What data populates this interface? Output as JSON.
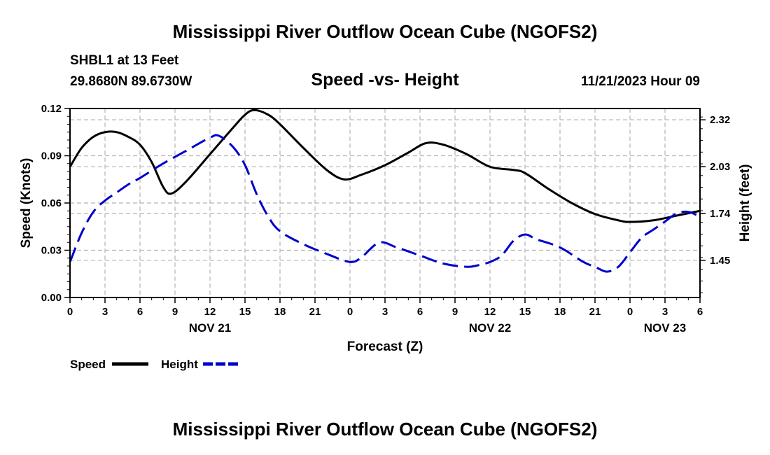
{
  "header": {
    "title": "Mississippi River Outflow Ocean Cube (NGOFS2)",
    "station": "SHBL1 at 13 Feet",
    "coords": "29.8680N  89.6730W",
    "subtitle": "Speed -vs- Height",
    "datetime": "11/21/2023 Hour 09"
  },
  "footer": {
    "title": "Mississippi River Outflow Ocean Cube (NGOFS2)"
  },
  "colors": {
    "speed": "#000000",
    "height": "#0000cc",
    "grid": "#b4b4b4"
  },
  "chart_data": {
    "type": "line",
    "xlabel": "Forecast (Z)",
    "ylabel": "Speed (Knots)",
    "y2label": "Height (feet)",
    "xlim": [
      0,
      54
    ],
    "ylim": [
      0,
      0.12
    ],
    "y2lim": [
      1.22,
      2.39
    ],
    "x_ticks": [
      0,
      3,
      6,
      9,
      12,
      15,
      18,
      21,
      24,
      27,
      30,
      33,
      36,
      39,
      42,
      45,
      48,
      51,
      54
    ],
    "x_tick_labels": [
      "0",
      "3",
      "6",
      "9",
      "12",
      "15",
      "18",
      "21",
      "0",
      "3",
      "6",
      "9",
      "12",
      "15",
      "18",
      "21",
      "0",
      "3",
      "6"
    ],
    "date_labels": [
      {
        "x": 12,
        "label": "NOV 21"
      },
      {
        "x": 36,
        "label": "NOV 22"
      },
      {
        "x": 51,
        "label": "NOV 23"
      }
    ],
    "y_ticks": [
      0,
      0.03,
      0.06,
      0.09,
      0.12
    ],
    "y_tick_labels": [
      "0.00",
      "0.03",
      "0.06",
      "0.09",
      "0.12"
    ],
    "y2_ticks": [
      1.45,
      1.74,
      2.03,
      2.32
    ],
    "y2_tick_labels": [
      "1.45",
      "1.74",
      "2.03",
      "2.32"
    ],
    "series": [
      {
        "name": "Speed",
        "axis": "left",
        "style": "solid",
        "x": [
          0,
          1,
          2,
          3,
          4,
          5,
          6,
          7,
          8,
          8.7,
          10,
          12,
          14,
          15,
          15.8,
          17,
          18,
          20,
          22,
          23.5,
          25,
          27,
          29,
          30.5,
          32,
          34,
          36,
          38,
          39,
          41,
          43,
          45,
          47,
          48,
          50,
          52,
          54
        ],
        "values": [
          0.083,
          0.095,
          0.102,
          0.105,
          0.105,
          0.102,
          0.097,
          0.086,
          0.07,
          0.066,
          0.074,
          0.091,
          0.108,
          0.116,
          0.119,
          0.116,
          0.11,
          0.095,
          0.081,
          0.075,
          0.078,
          0.084,
          0.092,
          0.098,
          0.097,
          0.091,
          0.083,
          0.081,
          0.079,
          0.069,
          0.06,
          0.053,
          0.049,
          0.048,
          0.049,
          0.052,
          0.055
        ]
      },
      {
        "name": "Height",
        "axis": "right",
        "style": "dashed",
        "x": [
          0,
          1,
          2,
          3,
          4,
          5,
          6,
          8,
          10,
          12,
          12.8,
          14,
          15,
          16,
          17,
          18,
          20,
          22,
          24,
          25,
          26.5,
          28,
          30,
          32,
          34,
          35,
          36,
          37,
          38,
          39,
          40,
          42,
          44,
          45,
          46,
          47,
          48,
          49,
          50,
          51,
          52,
          53,
          54
        ],
        "values": [
          1.44,
          1.62,
          1.75,
          1.82,
          1.87,
          1.92,
          1.96,
          2.05,
          2.13,
          2.21,
          2.22,
          2.15,
          2.04,
          1.86,
          1.72,
          1.63,
          1.55,
          1.49,
          1.44,
          1.47,
          1.56,
          1.53,
          1.48,
          1.43,
          1.41,
          1.42,
          1.44,
          1.48,
          1.57,
          1.61,
          1.58,
          1.53,
          1.44,
          1.41,
          1.38,
          1.41,
          1.5,
          1.59,
          1.64,
          1.69,
          1.74,
          1.75,
          1.72
        ]
      }
    ],
    "legend": [
      {
        "label": "Speed",
        "series": "Speed"
      },
      {
        "label": "Height",
        "series": "Height"
      }
    ]
  }
}
